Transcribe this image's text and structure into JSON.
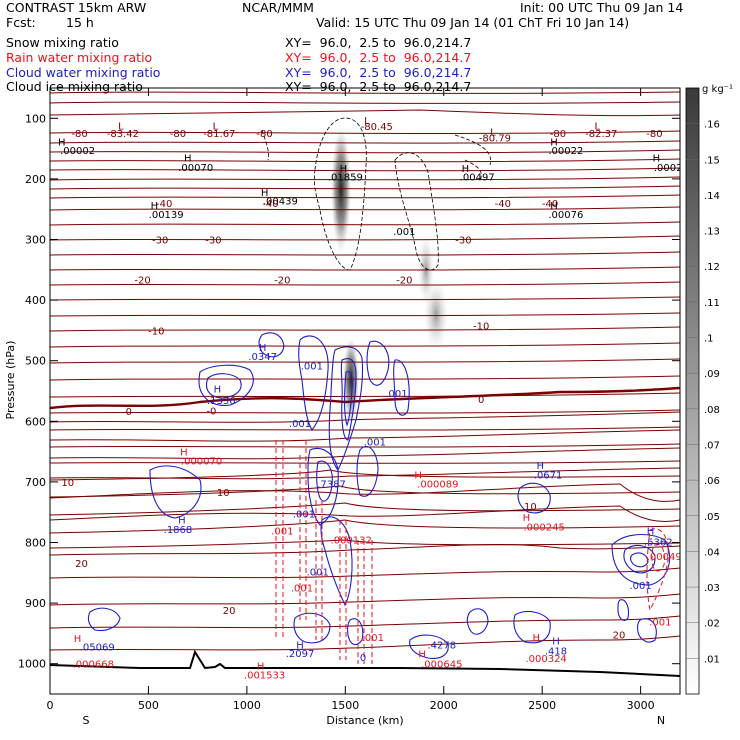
{
  "header": {
    "model": "CONTRAST 15km ARW",
    "org": "NCAR/MMM",
    "init": "Init: 00 UTC Thu 09 Jan 14",
    "fcst_label": "Fcst:",
    "fcst_value": "15 h",
    "valid": "Valid: 15 UTC Thu 09 Jan 14 (01 ChT Fri 10 Jan 14)"
  },
  "fields": [
    {
      "name": "Snow mixing ratio",
      "xy": "XY=  96.0,  2.5 to  96.0,214.7",
      "color": "#000000"
    },
    {
      "name": "Rain water mixing ratio",
      "xy": "XY=  96.0,  2.5 to  96.0,214.7",
      "color": "#e8141e"
    },
    {
      "name": "Cloud water mixing ratio",
      "xy": "XY=  96.0,  2.5 to  96.0,214.7",
      "color": "#1d1dc8"
    },
    {
      "name": "Cloud ice mixing ratio",
      "xy": "XY=  96.0,  2.5 to  96.0,214.7",
      "color": "#000000"
    }
  ],
  "colors": {
    "temperature": "#7a0000",
    "rain": "#e8141e",
    "cloud_water": "#1d1dc8",
    "cloud_ice": "#000000",
    "terrain": "#000000"
  },
  "chart_data": {
    "type": "cross-section",
    "xlabel": "Distance (km)",
    "ylabel": "Pressure (hPa)",
    "xlim": [
      0,
      3200
    ],
    "ylim": [
      1050,
      50
    ],
    "x_ticks": [
      0,
      500,
      1000,
      1500,
      2000,
      2500,
      3000
    ],
    "y_ticks": [
      100,
      200,
      300,
      400,
      500,
      600,
      700,
      800,
      900,
      1000
    ],
    "end_labels": {
      "left": "S",
      "right": "N"
    },
    "colorbar": {
      "title": "g kg⁻¹",
      "ticks": [
        ".01",
        ".02",
        ".03",
        ".04",
        ".05",
        ".06",
        ".07",
        ".08",
        ".09",
        ".1",
        ".11",
        ".12",
        ".13",
        ".14",
        ".15",
        ".16"
      ],
      "min": 0,
      "max": 0.17
    },
    "temperature_labels": [
      {
        "x": 150,
        "p": 124,
        "text": "-80"
      },
      {
        "x": 370,
        "p": 124,
        "text": "-83.42"
      },
      {
        "x": 650,
        "p": 124,
        "text": "-80"
      },
      {
        "x": 860,
        "p": 124,
        "text": "-81.67"
      },
      {
        "x": 1090,
        "p": 124,
        "text": "-80"
      },
      {
        "x": 1660,
        "p": 113,
        "text": "-80.45"
      },
      {
        "x": 2260,
        "p": 132,
        "text": "-80.79"
      },
      {
        "x": 2580,
        "p": 124,
        "text": "-80"
      },
      {
        "x": 2800,
        "p": 124,
        "text": "-82.37"
      },
      {
        "x": 3070,
        "p": 124,
        "text": "-80"
      },
      {
        "x": 580,
        "p": 240,
        "text": "-40"
      },
      {
        "x": 1120,
        "p": 240,
        "text": "-40"
      },
      {
        "x": 2300,
        "p": 240,
        "text": "-40"
      },
      {
        "x": 2540,
        "p": 240,
        "text": "-40"
      },
      {
        "x": 560,
        "p": 300,
        "text": "-30"
      },
      {
        "x": 830,
        "p": 300,
        "text": "-30"
      },
      {
        "x": 2100,
        "p": 300,
        "text": "-30"
      },
      {
        "x": 470,
        "p": 366,
        "text": "-20"
      },
      {
        "x": 1180,
        "p": 366,
        "text": "-20"
      },
      {
        "x": 1800,
        "p": 366,
        "text": "-20"
      },
      {
        "x": 540,
        "p": 450,
        "text": "-10"
      },
      {
        "x": 2190,
        "p": 442,
        "text": "-10"
      },
      {
        "x": 400,
        "p": 583,
        "text": "0"
      },
      {
        "x": 2190,
        "p": 563,
        "text": "0"
      },
      {
        "x": 820,
        "p": 582,
        "text": "-0"
      },
      {
        "x": 90,
        "p": 700,
        "text": "10"
      },
      {
        "x": 880,
        "p": 717,
        "text": "10"
      },
      {
        "x": 2440,
        "p": 740,
        "text": "10"
      },
      {
        "x": 160,
        "p": 834,
        "text": "20"
      },
      {
        "x": 910,
        "p": 911,
        "text": "20"
      },
      {
        "x": 2890,
        "p": 952,
        "text": "20"
      }
    ],
    "extrema_labels": [
      {
        "x": 360,
        "p": 112,
        "text": "L",
        "color": "temperature"
      },
      {
        "x": 840,
        "p": 112,
        "text": "L",
        "color": "temperature"
      },
      {
        "x": 1610,
        "p": 103,
        "text": "L",
        "color": "temperature"
      },
      {
        "x": 2250,
        "p": 122,
        "text": "L",
        "color": "temperature"
      },
      {
        "x": 2780,
        "p": 112,
        "text": "L",
        "color": "temperature"
      },
      {
        "x": 60,
        "p": 138,
        "text": "H",
        "color": "cloud_ice"
      },
      {
        "x": 140,
        "p": 152,
        "text": ".00002",
        "color": "cloud_ice"
      },
      {
        "x": 700,
        "p": 165,
        "text": "H",
        "color": "cloud_ice"
      },
      {
        "x": 740,
        "p": 180,
        "text": ".00070",
        "color": "cloud_ice"
      },
      {
        "x": 1490,
        "p": 182,
        "text": "H",
        "color": "cloud_ice"
      },
      {
        "x": 1500,
        "p": 196,
        "text": ".01859",
        "color": "cloud_ice"
      },
      {
        "x": 2110,
        "p": 182,
        "text": "H",
        "color": "cloud_ice"
      },
      {
        "x": 2170,
        "p": 196,
        "text": ".00497",
        "color": "cloud_ice"
      },
      {
        "x": 2560,
        "p": 138,
        "text": "H",
        "color": "cloud_ice"
      },
      {
        "x": 2620,
        "p": 152,
        "text": ".00022",
        "color": "cloud_ice"
      },
      {
        "x": 3080,
        "p": 165,
        "text": "H",
        "color": "cloud_ice"
      },
      {
        "x": 3140,
        "p": 180,
        "text": ".0002",
        "color": "cloud_ice"
      },
      {
        "x": 1090,
        "p": 222,
        "text": "H",
        "color": "cloud_ice"
      },
      {
        "x": 1170,
        "p": 236,
        "text": ".00439",
        "color": "cloud_ice"
      },
      {
        "x": 530,
        "p": 243,
        "text": "H",
        "color": "cloud_ice"
      },
      {
        "x": 590,
        "p": 258,
        "text": ".00139",
        "color": "cloud_ice"
      },
      {
        "x": 2560,
        "p": 243,
        "text": "H",
        "color": "cloud_ice"
      },
      {
        "x": 2620,
        "p": 258,
        "text": ".00076",
        "color": "cloud_ice"
      },
      {
        "x": 1800,
        "p": 286,
        "text": ".001",
        "color": "cloud_ice"
      },
      {
        "x": 1080,
        "p": 477,
        "text": "H",
        "color": "cloud_water"
      },
      {
        "x": 1080,
        "p": 492,
        "text": ".0347",
        "color": "cloud_water"
      },
      {
        "x": 1330,
        "p": 508,
        "text": ".001",
        "color": "cloud_water"
      },
      {
        "x": 850,
        "p": 546,
        "text": "H",
        "color": "cloud_water"
      },
      {
        "x": 870,
        "p": 565,
        "text": ".1336",
        "color": "cloud_water"
      },
      {
        "x": 1760,
        "p": 553,
        "text": ".001",
        "color": "cloud_water"
      },
      {
        "x": 1270,
        "p": 603,
        "text": ".001",
        "color": "cloud_water"
      },
      {
        "x": 1650,
        "p": 633,
        "text": ".001",
        "color": "cloud_water"
      },
      {
        "x": 670,
        "p": 762,
        "text": "H",
        "color": "cloud_water"
      },
      {
        "x": 650,
        "p": 778,
        "text": ".1868",
        "color": "cloud_water"
      },
      {
        "x": 1430,
        "p": 703,
        "text": ".7387",
        "color": "cloud_water"
      },
      {
        "x": 1290,
        "p": 752,
        "text": ".001",
        "color": "cloud_water"
      },
      {
        "x": 1360,
        "p": 848,
        "text": ".001",
        "color": "cloud_water"
      },
      {
        "x": 2490,
        "p": 672,
        "text": "H",
        "color": "cloud_water"
      },
      {
        "x": 2530,
        "p": 688,
        "text": ".0671",
        "color": "cloud_water"
      },
      {
        "x": 3050,
        "p": 780,
        "text": "H",
        "color": "cloud_water"
      },
      {
        "x": 3090,
        "p": 798,
        "text": ".5362",
        "color": "cloud_water"
      },
      {
        "x": 3000,
        "p": 870,
        "text": ".001",
        "color": "cloud_water"
      },
      {
        "x": 1590,
        "p": 989,
        "text": "0",
        "color": "cloud_water"
      },
      {
        "x": 1270,
        "p": 968,
        "text": "H",
        "color": "cloud_water"
      },
      {
        "x": 1270,
        "p": 982,
        "text": ".2097",
        "color": "cloud_water"
      },
      {
        "x": 1990,
        "p": 968,
        "text": ".4278",
        "color": "cloud_water"
      },
      {
        "x": 2570,
        "p": 962,
        "text": "H",
        "color": "cloud_water"
      },
      {
        "x": 2570,
        "p": 978,
        "text": ".418",
        "color": "cloud_water"
      },
      {
        "x": 240,
        "p": 972,
        "text": ".05069",
        "color": "cloud_water"
      },
      {
        "x": 680,
        "p": 650,
        "text": "H",
        "color": "rain"
      },
      {
        "x": 770,
        "p": 665,
        "text": ".000070",
        "color": "rain"
      },
      {
        "x": 1870,
        "p": 688,
        "text": "H",
        "color": "rain"
      },
      {
        "x": 1970,
        "p": 703,
        "text": ".000089",
        "color": "rain"
      },
      {
        "x": 1180,
        "p": 780,
        "text": ".001",
        "color": "rain"
      },
      {
        "x": 1530,
        "p": 795,
        "text": ".000132",
        "color": "rain"
      },
      {
        "x": 1280,
        "p": 874,
        "text": ".001",
        "color": "rain"
      },
      {
        "x": 2420,
        "p": 758,
        "text": "H",
        "color": "rain"
      },
      {
        "x": 2510,
        "p": 774,
        "text": ".000245",
        "color": "rain"
      },
      {
        "x": 3120,
        "p": 822,
        "text": ".00049",
        "color": "rain"
      },
      {
        "x": 3100,
        "p": 930,
        "text": ".001",
        "color": "rain"
      },
      {
        "x": 1640,
        "p": 956,
        "text": ".001",
        "color": "rain"
      },
      {
        "x": 2470,
        "p": 956,
        "text": "H",
        "color": "rain"
      },
      {
        "x": 2520,
        "p": 991,
        "text": ".000324",
        "color": "rain"
      },
      {
        "x": 140,
        "p": 958,
        "text": "H",
        "color": "rain"
      },
      {
        "x": 220,
        "p": 1000,
        "text": ".000668",
        "color": "rain"
      },
      {
        "x": 1890,
        "p": 983,
        "text": "H",
        "color": "rain"
      },
      {
        "x": 1990,
        "p": 1000,
        "text": ".000645",
        "color": "rain"
      },
      {
        "x": 1070,
        "p": 1003,
        "text": "H",
        "color": "rain"
      },
      {
        "x": 1090,
        "p": 1018,
        "text": ".001533",
        "color": "rain"
      }
    ]
  }
}
